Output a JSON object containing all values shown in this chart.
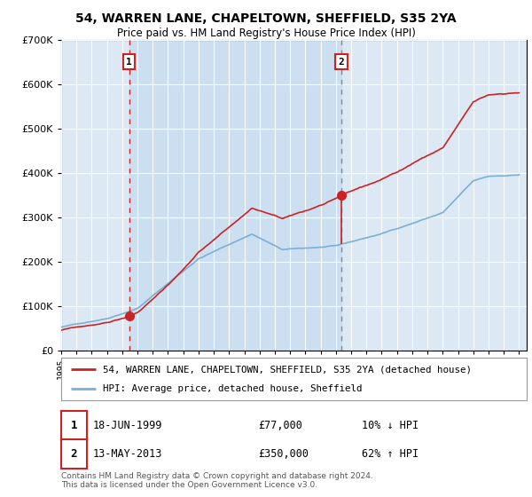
{
  "title_line1": "54, WARREN LANE, CHAPELTOWN, SHEFFIELD, S35 2YA",
  "title_line2": "Price paid vs. HM Land Registry's House Price Index (HPI)",
  "legend_line1": "54, WARREN LANE, CHAPELTOWN, SHEFFIELD, S35 2YA (detached house)",
  "legend_line2": "HPI: Average price, detached house, Sheffield",
  "sale1_date_label": "18-JUN-1999",
  "sale1_price": 77000,
  "sale1_pct": "10% ↓ HPI",
  "sale2_date_label": "13-MAY-2013",
  "sale2_price": 350000,
  "sale2_pct": "62% ↑ HPI",
  "year_start": 1995,
  "year_end": 2025,
  "ylim_max": 700000,
  "plot_bg": "#dce9f5",
  "hpi_color": "#7bafd4",
  "price_color": "#cc2222",
  "vline1_color": "#cc2222",
  "vline2_color": "#888888",
  "footnote": "Contains HM Land Registry data © Crown copyright and database right 2024.\nThis data is licensed under the Open Government Licence v3.0.",
  "sale1_year": 1999.46,
  "sale2_year": 2013.36
}
